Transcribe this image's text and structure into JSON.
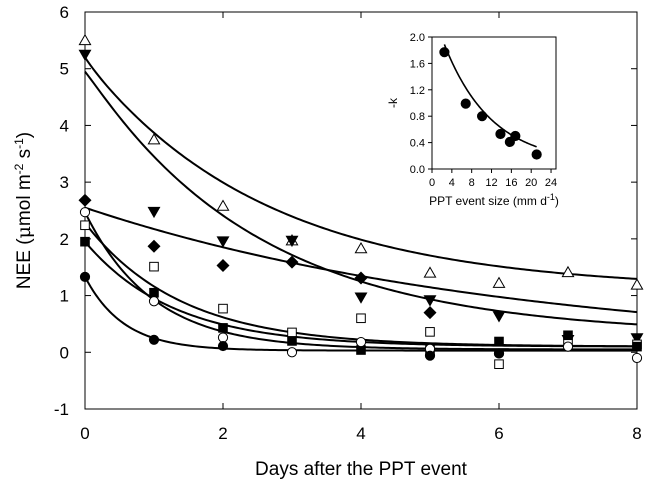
{
  "chart_data": [
    {
      "type": "scatter",
      "xlabel": "Days after the PPT event",
      "ylabel_main": "NEE (",
      "ylabel_mu": "μ",
      "ylabel_rest": "mol m",
      "ylabel_exp1": "-2",
      "ylabel_mid": " s",
      "ylabel_exp2": "-1",
      "ylabel_end": ")",
      "xlim": [
        0,
        8
      ],
      "ylim": [
        -1,
        6
      ],
      "x_ticks": [
        "0",
        "2",
        "4",
        "6",
        "8"
      ],
      "y_ticks": [
        "-1",
        "0",
        "1",
        "2",
        "3",
        "4",
        "5",
        "6"
      ],
      "grid": false,
      "series": [
        {
          "marker": "triangle-up-open",
          "x": [
            0,
            1,
            2,
            3,
            4,
            5,
            6,
            7,
            8
          ],
          "y": [
            5.5,
            3.75,
            2.58,
            1.97,
            1.83,
            1.4,
            1.22,
            1.41,
            1.19
          ],
          "fit": {
            "y0": 5.2,
            "a": 4.05,
            "k": 0.38,
            "c": 1.1
          }
        },
        {
          "marker": "triangle-down-filled",
          "x": [
            0,
            1,
            2,
            3,
            4,
            5,
            6,
            7,
            8
          ],
          "y": [
            5.25,
            2.48,
            1.96,
            1.97,
            0.97,
            0.92,
            0.64,
            0.22,
            0.25
          ],
          "fit": {
            "y0": 4.95,
            "a": 4.7,
            "k": 0.4,
            "c": 0.3
          }
        },
        {
          "marker": "diamond-filled",
          "x": [
            0,
            1,
            2,
            3,
            4,
            5
          ],
          "y": [
            2.68,
            1.87,
            1.53,
            1.59,
            1.31,
            0.7
          ],
          "fit": {
            "y0": 2.55,
            "a": 2.55,
            "k": 0.16,
            "c": 0.0
          }
        },
        {
          "marker": "square-open",
          "x": [
            0,
            1,
            2,
            3,
            4,
            5,
            6,
            7,
            8
          ],
          "y": [
            2.24,
            1.51,
            0.77,
            0.35,
            0.6,
            0.36,
            -0.21,
            0.2,
            0.14
          ],
          "fit": {
            "y0": 2.28,
            "a": 2.18,
            "k": 0.72,
            "c": 0.1
          }
        },
        {
          "marker": "square-filled",
          "x": [
            0,
            1,
            2,
            3,
            4,
            5,
            6,
            7,
            8
          ],
          "y": [
            1.95,
            1.05,
            0.43,
            0.2,
            0.04,
            0.04,
            0.19,
            0.3,
            0.1
          ],
          "fit": {
            "y0": 1.95,
            "a": 1.85,
            "k": 0.78,
            "c": 0.1
          }
        },
        {
          "marker": "circle-open",
          "x": [
            0,
            1,
            2,
            3,
            4,
            5,
            6,
            7,
            8
          ],
          "y": [
            2.47,
            0.9,
            0.26,
            0.0,
            0.18,
            0.06,
            -0.02,
            0.1,
            -0.1
          ],
          "fit": {
            "y0": 2.47,
            "a": 2.42,
            "k": 1.02,
            "c": 0.05
          }
        },
        {
          "marker": "circle-filled",
          "x": [
            0,
            1,
            2,
            5,
            6
          ],
          "y": [
            1.33,
            0.22,
            0.11,
            -0.06,
            -0.02
          ],
          "fit": {
            "y0": 1.33,
            "a": 1.3,
            "k": 1.78,
            "c": 0.03
          }
        }
      ]
    },
    {
      "type": "scatter",
      "inset": true,
      "xlabel_main": "PPT event size (mm d",
      "xlabel_exp": "-1",
      "xlabel_end": ")",
      "ylabel": "-k",
      "xlim": [
        0,
        25
      ],
      "ylim": [
        0.0,
        2.0
      ],
      "x_ticks": [
        "0",
        "4",
        "8",
        "12",
        "16",
        "20",
        "24"
      ],
      "y_ticks": [
        "0.0",
        "0.4",
        "0.8",
        "1.2",
        "1.6",
        "2.0"
      ],
      "grid": false,
      "series": [
        {
          "marker": "circle-filled",
          "x": [
            2.5,
            6.8,
            10.1,
            13.8,
            15.7,
            16.8,
            21.1
          ],
          "y": [
            1.77,
            0.99,
            0.8,
            0.53,
            0.41,
            0.5,
            0.22
          ],
          "fit": {
            "a": 2.35,
            "b": 0.105,
            "c": 0.08
          }
        }
      ]
    }
  ]
}
